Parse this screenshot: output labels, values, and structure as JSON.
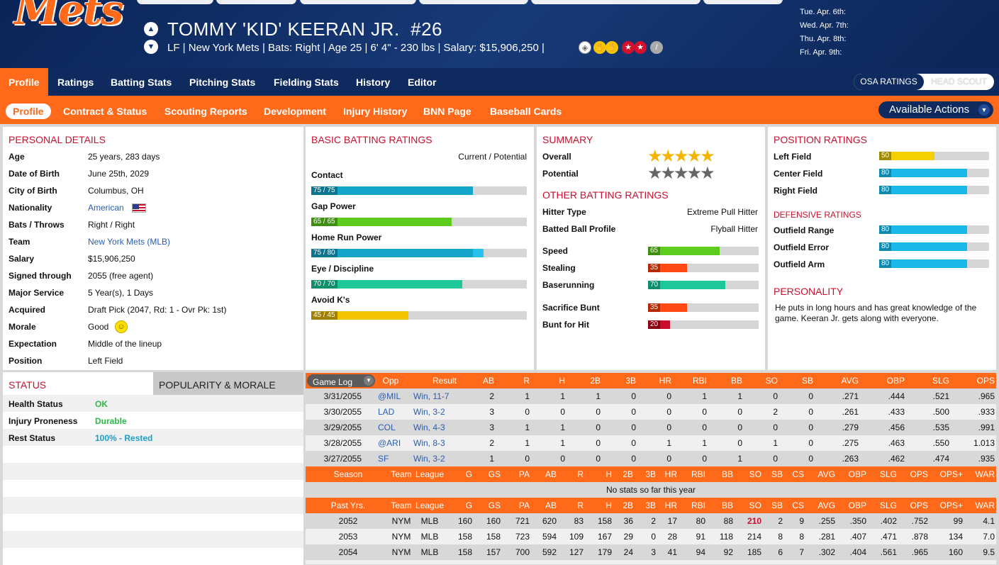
{
  "header": {
    "logo_text": "Mets",
    "player_name": "TOMMY 'KID' KEERAN JR.",
    "number": "#26",
    "info": "LF | New York Mets  |  Bats: Right  |  Age 25  |  6' 4\" - 230 lbs  |  Salary: $15,906,250  |",
    "dates": [
      "Tue. Apr. 6th:",
      "Wed. Apr. 7th:",
      "Thu. Apr. 8th:",
      "Fri. Apr. 9th:"
    ],
    "badge_icons": [
      "baseball-badge-icon",
      "glove-badge-icon",
      "glove-badge-icon",
      "star-badge-icon",
      "star-badge-icon",
      "bat-badge-icon"
    ]
  },
  "main_tabs": [
    "Profile",
    "Ratings",
    "Batting Stats",
    "Pitching Stats",
    "Fielding Stats",
    "History",
    "Editor"
  ],
  "rating_toggle": {
    "osa": "OSA RATINGS",
    "scout": "HEAD SCOUT"
  },
  "sub_tabs": [
    "Profile",
    "Contract & Status",
    "Scouting Reports",
    "Development",
    "Injury History",
    "BNN Page",
    "Baseball Cards"
  ],
  "actions_label": "Available Actions",
  "personal": {
    "title": "PERSONAL DETAILS",
    "rows": [
      {
        "label": "Age",
        "value": "25 years, 283 days"
      },
      {
        "label": "Date of Birth",
        "value": "June 25th, 2029"
      },
      {
        "label": "City of Birth",
        "value": "Columbus, OH"
      },
      {
        "label": "Nationality",
        "value": "American"
      },
      {
        "label": "Bats / Throws",
        "value": "Right / Right"
      },
      {
        "label": "Team",
        "value": "New York Mets (MLB)"
      },
      {
        "label": "Salary",
        "value": "$15,906,250"
      },
      {
        "label": "Signed through",
        "value": "2055 (free agent)"
      },
      {
        "label": "Major Service",
        "value": "5 Year(s), 1 Days"
      },
      {
        "label": "Acquired",
        "value": "Draft Pick (2047, Rd: 1 - Ovr Pk: 1st)"
      },
      {
        "label": "Morale",
        "value": "Good"
      },
      {
        "label": "Expectation",
        "value": "Middle of the lineup"
      },
      {
        "label": "Position",
        "value": "Left Field"
      }
    ]
  },
  "status": {
    "title": "STATUS",
    "tab2": "POPULARITY & MORALE",
    "rows": [
      {
        "label": "Health Status",
        "value": "OK",
        "color": "#2db84a"
      },
      {
        "label": "Injury Proneness",
        "value": "Durable",
        "color": "#2db84a"
      },
      {
        "label": "Rest Status",
        "value": "100% - Rested",
        "color": "#1aa0c8"
      }
    ]
  },
  "batting": {
    "title": "BASIC BATTING RATINGS",
    "subtitle": "Current / Potential",
    "rows": [
      {
        "label": "Contact",
        "text": "75 / 75",
        "cur": 75,
        "pot": 75,
        "color": "#13a6c8",
        "numcolor": "#0e7590"
      },
      {
        "label": "Gap Power",
        "text": "65 / 65",
        "cur": 65,
        "pot": 65,
        "color": "#5ccc1e",
        "numcolor": "#3e8f10"
      },
      {
        "label": "Home Run Power",
        "text": "75 / 80",
        "cur": 75,
        "pot": 80,
        "color": "#13a6c8",
        "numcolor": "#0e7590"
      },
      {
        "label": "Eye / Discipline",
        "text": "70 / 70",
        "cur": 70,
        "pot": 70,
        "color": "#1ec79a",
        "numcolor": "#0f8e6b"
      },
      {
        "label": "Avoid K's",
        "text": "45 / 45",
        "cur": 45,
        "pot": 45,
        "color": "#f4c400",
        "numcolor": "#a08000"
      }
    ]
  },
  "summary": {
    "title": "SUMMARY",
    "overall_label": "Overall",
    "overall_stars": 5,
    "potential_label": "Potential",
    "potential_stars": 5,
    "other_title": "OTHER BATTING RATINGS",
    "text_rows": [
      {
        "label": "Hitter Type",
        "value": "Extreme Pull Hitter"
      },
      {
        "label": "Batted Ball Profile",
        "value": "Flyball Hitter"
      }
    ],
    "bars": [
      {
        "label": "Speed",
        "value": 65,
        "text": "65",
        "color": "#5ccc1e",
        "numcolor": "#3e8f10"
      },
      {
        "label": "Stealing",
        "value": 35,
        "text": "35",
        "color": "#ff4a14",
        "numcolor": "#b52a00"
      },
      {
        "label": "Baserunning",
        "value": 70,
        "text": "70",
        "color": "#1ec79a",
        "numcolor": "#0f8e6b"
      },
      {
        "label": "Sacrifice Bunt",
        "value": 35,
        "text": "35",
        "color": "#ff4a14",
        "numcolor": "#b52a00"
      },
      {
        "label": "Bunt for Hit",
        "value": 20,
        "text": "20",
        "color": "#c8102e",
        "numcolor": "#8a0010"
      }
    ]
  },
  "position": {
    "title": "POSITION RATINGS",
    "rows": [
      {
        "label": "Left Field",
        "value": 50,
        "text": "50",
        "color": "#f4d000",
        "numcolor": "#a08a00"
      },
      {
        "label": "Center Field",
        "value": 80,
        "text": "80",
        "color": "#1ab8e8",
        "numcolor": "#0e8ab0"
      },
      {
        "label": "Right Field",
        "value": 80,
        "text": "80",
        "color": "#1ab8e8",
        "numcolor": "#0e8ab0"
      }
    ],
    "def_title": "DEFENSIVE RATINGS",
    "def_rows": [
      {
        "label": "Outfield Range",
        "value": 80,
        "text": "80",
        "color": "#1ab8e8",
        "numcolor": "#0e8ab0"
      },
      {
        "label": "Outfield Error",
        "value": 80,
        "text": "80",
        "color": "#1ab8e8",
        "numcolor": "#0e8ab0"
      },
      {
        "label": "Outfield Arm",
        "value": 80,
        "text": "80",
        "color": "#1ab8e8",
        "numcolor": "#0e8ab0"
      }
    ],
    "personality_title": "PERSONALITY",
    "personality_text": "He puts in long hours and has great knowledge of the game. Keeran Jr. gets along with everyone."
  },
  "gamelog": {
    "select_label": "Game Log",
    "headers": [
      "Opp",
      "Result",
      "AB",
      "R",
      "H",
      "2B",
      "3B",
      "HR",
      "RBI",
      "BB",
      "SO",
      "SB",
      "AVG",
      "OBP",
      "SLG",
      "OPS"
    ],
    "rows": [
      {
        "date": "3/31/2055",
        "cells": [
          "@MIL",
          "Win, 11-7",
          "2",
          "1",
          "1",
          "1",
          "0",
          "0",
          "1",
          "1",
          "0",
          "0",
          ".271",
          ".444",
          ".521",
          ".965"
        ]
      },
      {
        "date": "3/30/2055",
        "cells": [
          "LAD",
          "Win, 3-2",
          "3",
          "0",
          "0",
          "0",
          "0",
          "0",
          "0",
          "0",
          "2",
          "0",
          ".261",
          ".433",
          ".500",
          ".933"
        ]
      },
      {
        "date": "3/29/2055",
        "cells": [
          "COL",
          "Win, 4-3",
          "3",
          "1",
          "1",
          "0",
          "0",
          "0",
          "0",
          "0",
          "0",
          "0",
          ".279",
          ".456",
          ".535",
          ".991"
        ]
      },
      {
        "date": "3/28/2055",
        "cells": [
          "@ARI",
          "Win, 8-3",
          "2",
          "1",
          "1",
          "0",
          "0",
          "1",
          "1",
          "0",
          "1",
          "0",
          ".275",
          ".463",
          ".550",
          "1.013"
        ]
      },
      {
        "date": "3/27/2055",
        "cells": [
          "SF",
          "Win, 3-2",
          "1",
          "0",
          "0",
          "0",
          "0",
          "0",
          "0",
          "1",
          "0",
          "0",
          ".263",
          ".462",
          ".474",
          ".935"
        ]
      }
    ]
  },
  "season": {
    "headers": [
      "Season",
      "Team",
      "League",
      "G",
      "GS",
      "PA",
      "AB",
      "R",
      "H",
      "2B",
      "3B",
      "HR",
      "RBI",
      "BB",
      "SO",
      "SB",
      "CS",
      "AVG",
      "OBP",
      "SLG",
      "OPS",
      "OPS+",
      "WAR"
    ],
    "empty": "No stats so far this year"
  },
  "past": {
    "headers": [
      "Past Yrs.",
      "Team",
      "League",
      "G",
      "GS",
      "PA",
      "AB",
      "R",
      "H",
      "2B",
      "3B",
      "HR",
      "RBI",
      "BB",
      "SO",
      "SB",
      "CS",
      "AVG",
      "OBP",
      "SLG",
      "OPS",
      "OPS+",
      "WAR"
    ],
    "rows": [
      [
        "2052",
        "NYM",
        "MLB",
        "160",
        "160",
        "721",
        "620",
        "83",
        "158",
        "36",
        "2",
        "17",
        "80",
        "88",
        "210",
        "2",
        "9",
        ".255",
        ".350",
        ".402",
        ".752",
        "99",
        "4.1"
      ],
      [
        "2053",
        "NYM",
        "MLB",
        "158",
        "158",
        "723",
        "594",
        "109",
        "167",
        "29",
        "0",
        "28",
        "91",
        "118",
        "214",
        "8",
        "8",
        ".281",
        ".407",
        ".471",
        ".878",
        "134",
        "7.0"
      ],
      [
        "2054",
        "NYM",
        "MLB",
        "158",
        "157",
        "700",
        "592",
        "127",
        "179",
        "24",
        "3",
        "41",
        "94",
        "92",
        "185",
        "6",
        "7",
        ".302",
        ".404",
        ".561",
        ".965",
        "160",
        "9.5"
      ]
    ],
    "highlight_color": "#c8102e"
  }
}
